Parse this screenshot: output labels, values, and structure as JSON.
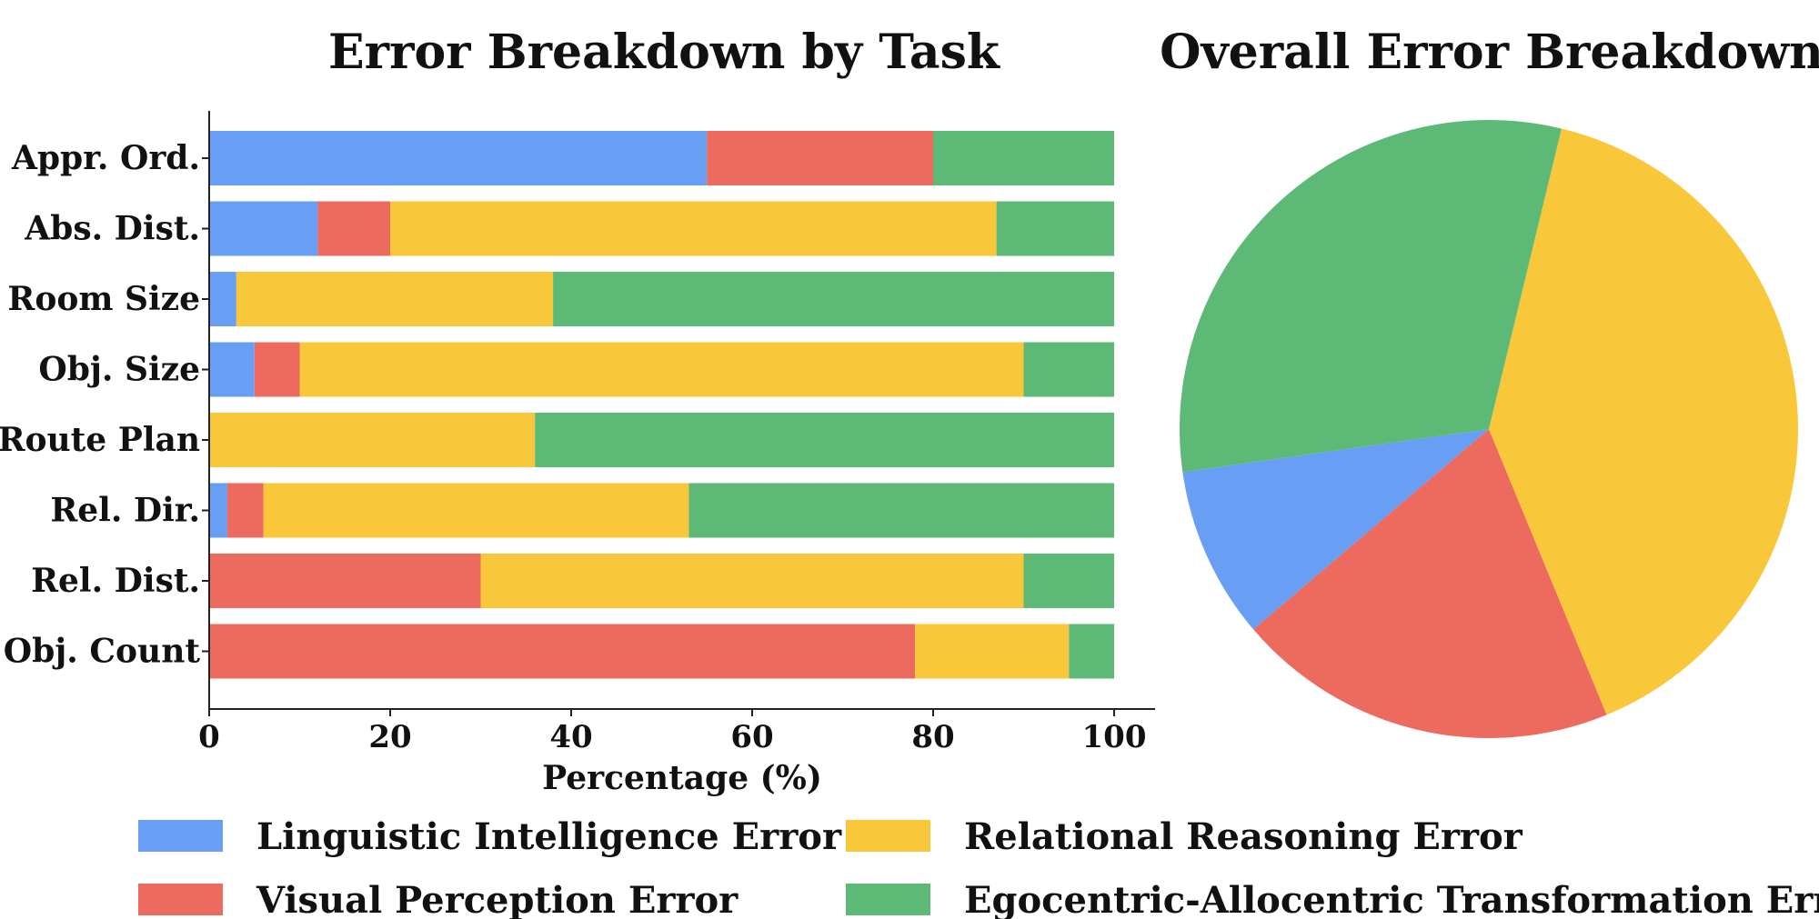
{
  "colors": {
    "linguistic": "#689ef4",
    "visual": "#ec6a5e",
    "relational": "#f9c73a",
    "egocentric": "#5db976"
  },
  "chart_data": [
    {
      "type": "bar",
      "orientation": "horizontal",
      "stacked": true,
      "title": "Error Breakdown by Task",
      "xlabel": "Percentage (%)",
      "ylabel": "",
      "xlim": [
        0,
        100
      ],
      "xticks": [
        "0",
        "20",
        "40",
        "60",
        "80",
        "100"
      ],
      "categories": [
        "Appr. Ord.",
        "Abs. Dist.",
        "Room Size",
        "Obj. Size",
        "Route Plan",
        "Rel. Dir.",
        "Rel. Dist.",
        "Obj. Count"
      ],
      "series": [
        {
          "name": "Linguistic Intelligence Error",
          "color_key": "linguistic",
          "values": [
            55,
            12,
            3,
            5,
            0,
            2,
            0,
            0
          ]
        },
        {
          "name": "Visual Perception Error",
          "color_key": "visual",
          "values": [
            25,
            8,
            0,
            5,
            0,
            4,
            30,
            78
          ]
        },
        {
          "name": "Relational Reasoning Error",
          "color_key": "relational",
          "values": [
            0,
            67,
            35,
            80,
            36,
            47,
            60,
            17
          ]
        },
        {
          "name": "Egocentric-Allocentric Transformation Error",
          "color_key": "egocentric",
          "values": [
            20,
            13,
            62,
            10,
            64,
            47,
            10,
            5
          ]
        }
      ],
      "grid": false
    },
    {
      "type": "pie",
      "title": "Overall Error Breakdown",
      "slices": [
        {
          "name": "Linguistic Intelligence Error",
          "color_key": "linguistic",
          "value": 9
        },
        {
          "name": "Visual Perception Error",
          "color_key": "visual",
          "value": 20
        },
        {
          "name": "Relational Reasoning Error",
          "color_key": "relational",
          "value": 40
        },
        {
          "name": "Egocentric-Allocentric Transformation Error",
          "color_key": "egocentric",
          "value": 31
        }
      ],
      "start_angle_deg": 188,
      "direction": "counterclockwise-from-left"
    }
  ],
  "legend": {
    "placement": "bottom",
    "items": [
      {
        "label": "Linguistic Intelligence Error",
        "color_key": "linguistic"
      },
      {
        "label": "Relational Reasoning Error",
        "color_key": "relational"
      },
      {
        "label": "Visual Perception Error",
        "color_key": "visual"
      },
      {
        "label": "Egocentric-Allocentric Transformation Error",
        "color_key": "egocentric"
      }
    ]
  }
}
